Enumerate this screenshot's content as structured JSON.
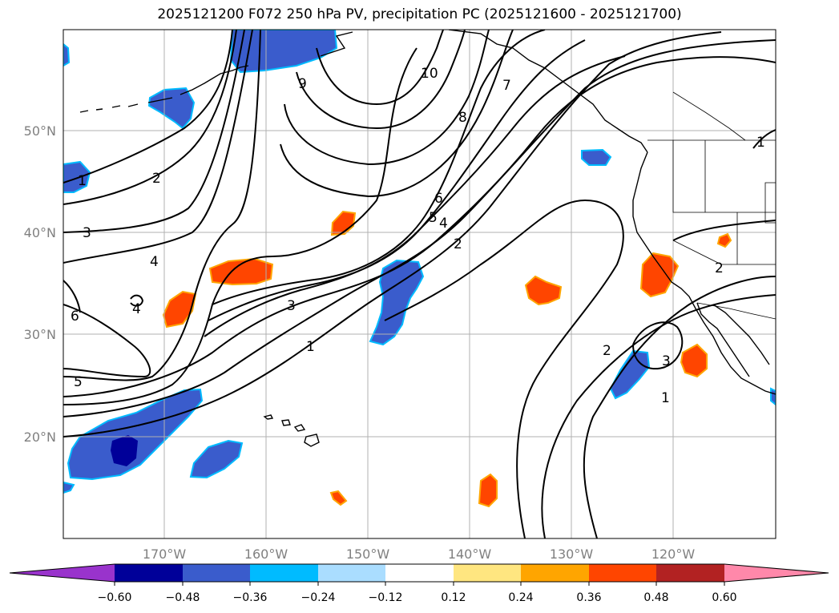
{
  "title": "2025121200 F072 250 hPa PV, precipitation PC (2025121600 - 2025121700)",
  "lat_labels": [
    "50°N",
    "40°N",
    "30°N",
    "20°N"
  ],
  "lon_labels": [
    "170°W",
    "160°W",
    "150°W",
    "140°W",
    "130°W",
    "120°W"
  ],
  "contour_labels": [
    "1",
    "2",
    "3",
    "4",
    "6",
    "5",
    "1",
    "2",
    "3",
    "4",
    "5",
    "6",
    "7",
    "8",
    "9",
    "10",
    "2",
    "3",
    "1",
    "2",
    "1",
    "4"
  ],
  "colorbar": {
    "tick_labels": [
      "−0.60",
      "−0.48",
      "−0.36",
      "−0.24",
      "−0.12",
      "0.12",
      "0.24",
      "0.36",
      "0.48",
      "0.60"
    ],
    "colors": [
      "#9933cc",
      "#000099",
      "#3a5ccc",
      "#00bbff",
      "#aaddff",
      "#ffffff",
      "#ffe680",
      "#ffa500",
      "#ff4500",
      "#b22222",
      "#ff88aa"
    ]
  },
  "colors": {
    "pos_strong": "#ff4500",
    "pos_edge": "#ffa500",
    "pos_weak": "#ffe680",
    "neg_mid": "#3a5ccc",
    "neg_edge": "#00bbff",
    "neg_strong": "#000099"
  }
}
